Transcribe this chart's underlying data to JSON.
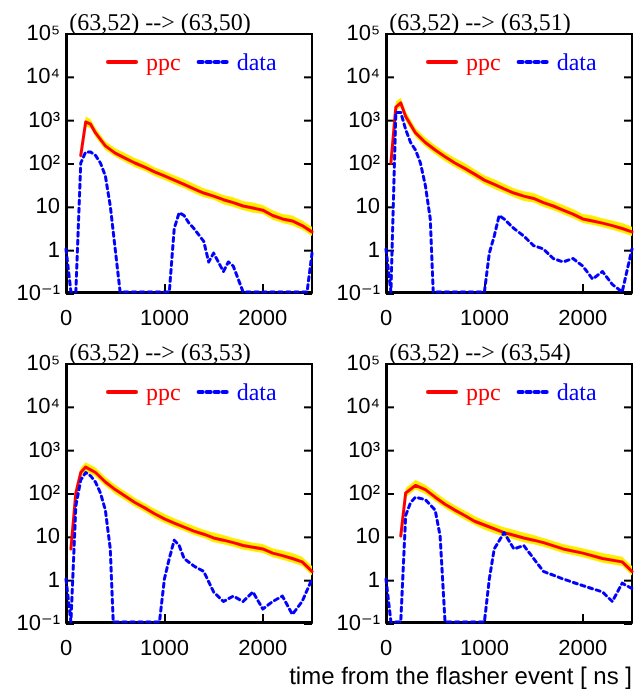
{
  "chart_data": [
    {
      "type": "line",
      "title": "(63,52) --> (63,50)",
      "log": "y",
      "grid": false,
      "legend": "top",
      "marker": "none",
      "xlim": [
        0,
        2500
      ],
      "xticks": [
        0,
        1000,
        2000
      ],
      "ylim": [
        0.1,
        100000
      ],
      "yticks": [
        {
          "value": 0.1,
          "label": "10⁻¹"
        },
        {
          "value": 1,
          "label": "1"
        },
        {
          "value": 10,
          "label": "10"
        },
        {
          "value": 100,
          "label": "10²"
        },
        {
          "value": 1000,
          "label": "10³"
        },
        {
          "value": 10000,
          "label": "10⁴"
        },
        {
          "value": 100000,
          "label": "10⁵"
        }
      ],
      "series": [
        {
          "name": "ppc",
          "color": "#ff0000",
          "line_style": "solid",
          "x": [
            150,
            200,
            250,
            300,
            400,
            500,
            600,
            700,
            800,
            900,
            1000,
            1100,
            1200,
            1300,
            1400,
            1500,
            1600,
            1700,
            1800,
            1900,
            2000,
            2100,
            2200,
            2300,
            2400,
            2500
          ],
          "values": [
            150,
            900,
            800,
            500,
            250,
            170,
            130,
            100,
            80,
            62,
            50,
            40,
            32,
            25,
            20,
            17,
            14,
            12,
            10,
            9,
            8,
            6,
            5,
            4.5,
            3.5,
            2.5
          ],
          "lower": [
            120,
            700,
            650,
            400,
            200,
            140,
            105,
            80,
            65,
            50,
            40,
            32,
            26,
            20,
            16,
            14,
            11,
            9.5,
            8,
            7,
            6.5,
            4.8,
            4,
            3.5,
            2.8,
            2
          ],
          "upper": [
            190,
            1200,
            1050,
            650,
            320,
            220,
            170,
            130,
            105,
            80,
            65,
            52,
            42,
            33,
            26,
            22,
            18,
            16,
            13,
            12,
            10.5,
            8,
            6.5,
            6,
            4.6,
            3.3
          ]
        },
        {
          "name": "data",
          "color": "#0000ff",
          "line_style": "dotted",
          "x": [
            0,
            50,
            100,
            150,
            200,
            250,
            300,
            350,
            400,
            450,
            500,
            550,
            1050,
            1100,
            1150,
            1200,
            1250,
            1300,
            1400,
            1450,
            1500,
            1600,
            1650,
            1700,
            1750,
            1800,
            2000,
            2450,
            2500
          ],
          "values": [
            1,
            0.1,
            0.1,
            100,
            180,
            180,
            150,
            100,
            50,
            10,
            1,
            0.1,
            0.1,
            3,
            7,
            6,
            4,
            3,
            1.5,
            0.5,
            0.8,
            0.3,
            0.5,
            0.4,
            0.2,
            0.1,
            0.1,
            0.1,
            0.8
          ]
        }
      ]
    },
    {
      "type": "line",
      "title": "(63,52) --> (63,51)",
      "log": "y",
      "grid": false,
      "legend": "top",
      "marker": "none",
      "xlim": [
        0,
        2500
      ],
      "xticks": [
        0,
        1000,
        2000
      ],
      "ylim": [
        0.1,
        100000
      ],
      "yticks": [
        {
          "value": 0.1,
          "label": "10⁻¹"
        },
        {
          "value": 1,
          "label": "1"
        },
        {
          "value": 10,
          "label": "10"
        },
        {
          "value": 100,
          "label": "10²"
        },
        {
          "value": 1000,
          "label": "10³"
        },
        {
          "value": 10000,
          "label": "10⁴"
        },
        {
          "value": 100000,
          "label": "10⁵"
        }
      ],
      "series": [
        {
          "name": "ppc",
          "color": "#ff0000",
          "line_style": "solid",
          "x": [
            50,
            100,
            150,
            200,
            300,
            400,
            500,
            600,
            700,
            800,
            900,
            1000,
            1100,
            1200,
            1300,
            1400,
            1500,
            1600,
            1700,
            1800,
            1900,
            2000,
            2100,
            2200,
            2300,
            2400,
            2500
          ],
          "values": [
            100,
            2000,
            2500,
            1200,
            500,
            300,
            200,
            140,
            100,
            75,
            55,
            40,
            32,
            25,
            20,
            17,
            15,
            12,
            10,
            8,
            6.5,
            5,
            4.5,
            4,
            3.5,
            3,
            2.5
          ],
          "lower": [
            80,
            1600,
            2000,
            950,
            400,
            240,
            160,
            110,
            80,
            60,
            44,
            32,
            25,
            20,
            16,
            13,
            12,
            9.5,
            8,
            6.4,
            5.2,
            4,
            3.6,
            3.2,
            2.8,
            2.4,
            2
          ],
          "upper": [
            130,
            2700,
            3300,
            1600,
            650,
            390,
            260,
            180,
            130,
            100,
            72,
            52,
            42,
            33,
            26,
            22,
            20,
            16,
            13,
            10.5,
            8.5,
            6.5,
            6,
            5.2,
            4.6,
            4,
            3.3
          ]
        },
        {
          "name": "data",
          "color": "#0000ff",
          "line_style": "dotted",
          "x": [
            0,
            50,
            100,
            150,
            200,
            250,
            300,
            350,
            400,
            450,
            480,
            1000,
            1050,
            1100,
            1150,
            1200,
            1300,
            1400,
            1500,
            1600,
            1700,
            1800,
            1900,
            2000,
            2100,
            2200,
            2300,
            2400,
            2500
          ],
          "values": [
            1,
            0.1,
            1500,
            1500,
            600,
            300,
            200,
            100,
            30,
            5,
            0.1,
            0.1,
            0.8,
            2,
            6,
            5,
            3,
            2,
            1.2,
            1,
            0.6,
            0.5,
            0.6,
            0.4,
            0.2,
            0.3,
            0.15,
            0.1,
            1
          ]
        }
      ]
    },
    {
      "type": "line",
      "title": "(63,52) --> (63,53)",
      "log": "y",
      "grid": false,
      "legend": "top",
      "marker": "none",
      "xlim": [
        0,
        2500
      ],
      "xticks": [
        0,
        1000,
        2000
      ],
      "ylim": [
        0.1,
        100000
      ],
      "yticks": [
        {
          "value": 0.1,
          "label": "10⁻¹"
        },
        {
          "value": 1,
          "label": "1"
        },
        {
          "value": 10,
          "label": "10"
        },
        {
          "value": 100,
          "label": "10²"
        },
        {
          "value": 1000,
          "label": "10³"
        },
        {
          "value": 10000,
          "label": "10⁴"
        },
        {
          "value": 100000,
          "label": "10⁵"
        }
      ],
      "series": [
        {
          "name": "ppc",
          "color": "#ff0000",
          "line_style": "solid",
          "x": [
            50,
            100,
            150,
            200,
            300,
            400,
            500,
            600,
            700,
            800,
            900,
            1000,
            1100,
            1200,
            1300,
            1400,
            1500,
            1600,
            1700,
            1800,
            1900,
            2000,
            2100,
            2200,
            2300,
            2400,
            2500
          ],
          "values": [
            5,
            100,
            300,
            400,
            300,
            180,
            120,
            85,
            60,
            45,
            33,
            25,
            20,
            16,
            13,
            11,
            9,
            8,
            7,
            6,
            5.5,
            5,
            4,
            3.5,
            3,
            2.5,
            1.5
          ],
          "lower": [
            4,
            80,
            240,
            320,
            240,
            145,
            95,
            68,
            48,
            36,
            26,
            20,
            16,
            13,
            10.5,
            9,
            7.2,
            6.4,
            5.6,
            4.8,
            4.4,
            4,
            3.2,
            2.8,
            2.4,
            2,
            1.2
          ],
          "upper": [
            6.5,
            130,
            390,
            520,
            390,
            235,
            155,
            110,
            78,
            58,
            43,
            33,
            26,
            21,
            17,
            14,
            12,
            10.5,
            9,
            8,
            7,
            6.5,
            5.2,
            4.6,
            4,
            3.3,
            2
          ]
        },
        {
          "name": "data",
          "color": "#0000ff",
          "line_style": "dotted",
          "x": [
            0,
            50,
            100,
            150,
            200,
            250,
            300,
            350,
            400,
            450,
            480,
            950,
            1000,
            1050,
            1100,
            1150,
            1200,
            1300,
            1400,
            1500,
            1600,
            1700,
            1800,
            1900,
            2000,
            2100,
            2200,
            2300,
            2400,
            2500
          ],
          "values": [
            1,
            0.1,
            50,
            200,
            300,
            250,
            180,
            100,
            40,
            5,
            0.1,
            0.1,
            1,
            3,
            8,
            6,
            3,
            2,
            1.5,
            0.5,
            0.3,
            0.4,
            0.3,
            0.5,
            0.2,
            0.3,
            0.4,
            0.15,
            0.3,
            1
          ]
        }
      ]
    },
    {
      "type": "line",
      "title": "(63,52) --> (63,54)",
      "xlabel": "time from the flasher event [ ns ]",
      "log": "y",
      "grid": false,
      "legend": "top",
      "marker": "none",
      "xlim": [
        0,
        2500
      ],
      "xticks": [
        0,
        1000,
        2000
      ],
      "ylim": [
        0.1,
        100000
      ],
      "yticks": [
        {
          "value": 0.1,
          "label": "10⁻¹"
        },
        {
          "value": 1,
          "label": "1"
        },
        {
          "value": 10,
          "label": "10"
        },
        {
          "value": 100,
          "label": "10²"
        },
        {
          "value": 1000,
          "label": "10³"
        },
        {
          "value": 10000,
          "label": "10⁴"
        },
        {
          "value": 100000,
          "label": "10⁵"
        }
      ],
      "series": [
        {
          "name": "ppc",
          "color": "#ff0000",
          "line_style": "solid",
          "x": [
            150,
            200,
            300,
            400,
            500,
            600,
            700,
            800,
            900,
            1000,
            1200,
            1400,
            1500,
            1600,
            1800,
            2000,
            2200,
            2400,
            2500
          ],
          "values": [
            10,
            100,
            150,
            120,
            80,
            55,
            40,
            30,
            22,
            18,
            12,
            9,
            8,
            7,
            5,
            4,
            3,
            2.5,
            1.5
          ],
          "lower": [
            8,
            80,
            120,
            95,
            64,
            44,
            32,
            24,
            18,
            14,
            9.6,
            7.2,
            6.4,
            5.6,
            4,
            3.2,
            2.4,
            2,
            1.2
          ],
          "upper": [
            13,
            130,
            200,
            155,
            105,
            72,
            52,
            39,
            29,
            23,
            16,
            12,
            10.5,
            9,
            6.5,
            5.2,
            4,
            3.3,
            2
          ]
        },
        {
          "name": "data",
          "color": "#0000ff",
          "line_style": "dotted",
          "x": [
            0,
            50,
            150,
            200,
            250,
            300,
            400,
            500,
            550,
            600,
            1000,
            1050,
            1100,
            1200,
            1300,
            1400,
            1500,
            1600,
            1800,
            2000,
            2200,
            2300,
            2400,
            2500
          ],
          "values": [
            1,
            0.1,
            0.1,
            30,
            60,
            80,
            70,
            40,
            10,
            0.1,
            0.1,
            1,
            5,
            12,
            5,
            6,
            3,
            1.5,
            1,
            0.7,
            0.5,
            0.3,
            0.8,
            0.6
          ]
        }
      ]
    }
  ]
}
